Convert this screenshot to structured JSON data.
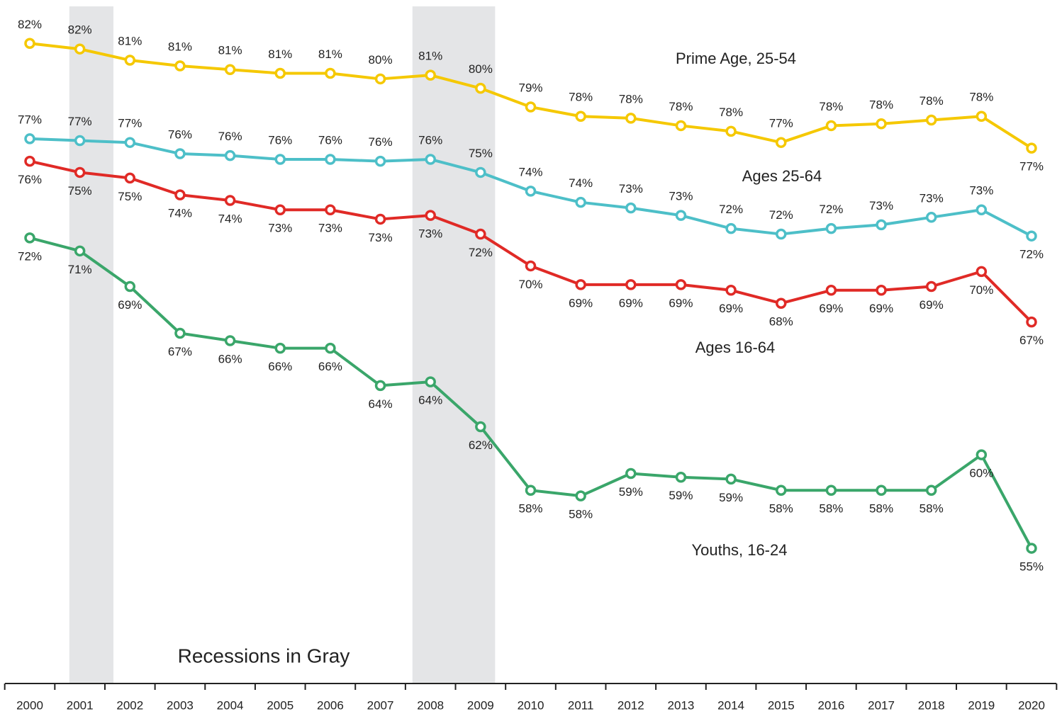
{
  "chart_data": {
    "type": "line",
    "categories": [
      "2000",
      "2001",
      "2002",
      "2003",
      "2004",
      "2005",
      "2006",
      "2007",
      "2008",
      "2009",
      "2010",
      "2011",
      "2012",
      "2013",
      "2014",
      "2015",
      "2016",
      "2017",
      "2018",
      "2019",
      "2020"
    ],
    "series": [
      {
        "name": "Prime Age, 25-54",
        "color": "#f5c800",
        "values": [
          82.3,
          82.0,
          81.4,
          81.1,
          80.9,
          80.7,
          80.7,
          80.4,
          80.6,
          79.9,
          78.9,
          78.4,
          78.3,
          77.9,
          77.6,
          77.0,
          77.9,
          78.0,
          78.2,
          78.4,
          76.7
        ],
        "value_labels": [
          "82%",
          "82%",
          "81%",
          "81%",
          "81%",
          "81%",
          "81%",
          "80%",
          "81%",
          "80%",
          "79%",
          "78%",
          "78%",
          "78%",
          "78%",
          "77%",
          "78%",
          "78%",
          "78%",
          "78%",
          "77%"
        ]
      },
      {
        "name": "Ages 25-64",
        "color": "#4dbfc8",
        "values": [
          77.2,
          77.1,
          77.0,
          76.4,
          76.3,
          76.1,
          76.1,
          76.0,
          76.1,
          75.4,
          74.4,
          73.8,
          73.5,
          73.1,
          72.4,
          72.1,
          72.4,
          72.6,
          73.0,
          73.4,
          72.0
        ],
        "value_labels": [
          "77%",
          "77%",
          "77%",
          "76%",
          "76%",
          "76%",
          "76%",
          "76%",
          "76%",
          "75%",
          "74%",
          "74%",
          "73%",
          "73%",
          "72%",
          "72%",
          "72%",
          "73%",
          "73%",
          "73%",
          "72%"
        ]
      },
      {
        "name": "Ages 16-64",
        "color": "#e02a26",
        "values": [
          76.0,
          75.4,
          75.1,
          74.2,
          73.9,
          73.4,
          73.4,
          72.9,
          73.1,
          72.1,
          70.4,
          69.4,
          69.4,
          69.4,
          69.1,
          68.4,
          69.1,
          69.1,
          69.3,
          70.1,
          67.4
        ],
        "value_labels": [
          "76%",
          "75%",
          "75%",
          "74%",
          "74%",
          "73%",
          "73%",
          "73%",
          "73%",
          "72%",
          "70%",
          "69%",
          "69%",
          "69%",
          "69%",
          "68%",
          "69%",
          "69%",
          "69%",
          "70%",
          "67%"
        ]
      },
      {
        "name": "Youths, 16-24",
        "color": "#3aa66a",
        "values": [
          71.9,
          71.2,
          69.3,
          66.8,
          66.4,
          66.0,
          66.0,
          64.0,
          64.2,
          61.8,
          58.4,
          58.1,
          59.3,
          59.1,
          59.0,
          58.4,
          58.4,
          58.4,
          58.4,
          60.3,
          55.3
        ],
        "value_labels": [
          "72%",
          "71%",
          "69%",
          "67%",
          "66%",
          "66%",
          "66%",
          "64%",
          "64%",
          "62%",
          "58%",
          "58%",
          "59%",
          "59%",
          "59%",
          "58%",
          "58%",
          "58%",
          "58%",
          "60%",
          "55%"
        ]
      }
    ],
    "ylim": [
      50,
      85
    ],
    "recessions": [
      {
        "start": 2000.79,
        "end": 2001.67
      },
      {
        "start": 2007.64,
        "end": 2009.29
      }
    ],
    "annotation": "Recessions in Gray"
  }
}
